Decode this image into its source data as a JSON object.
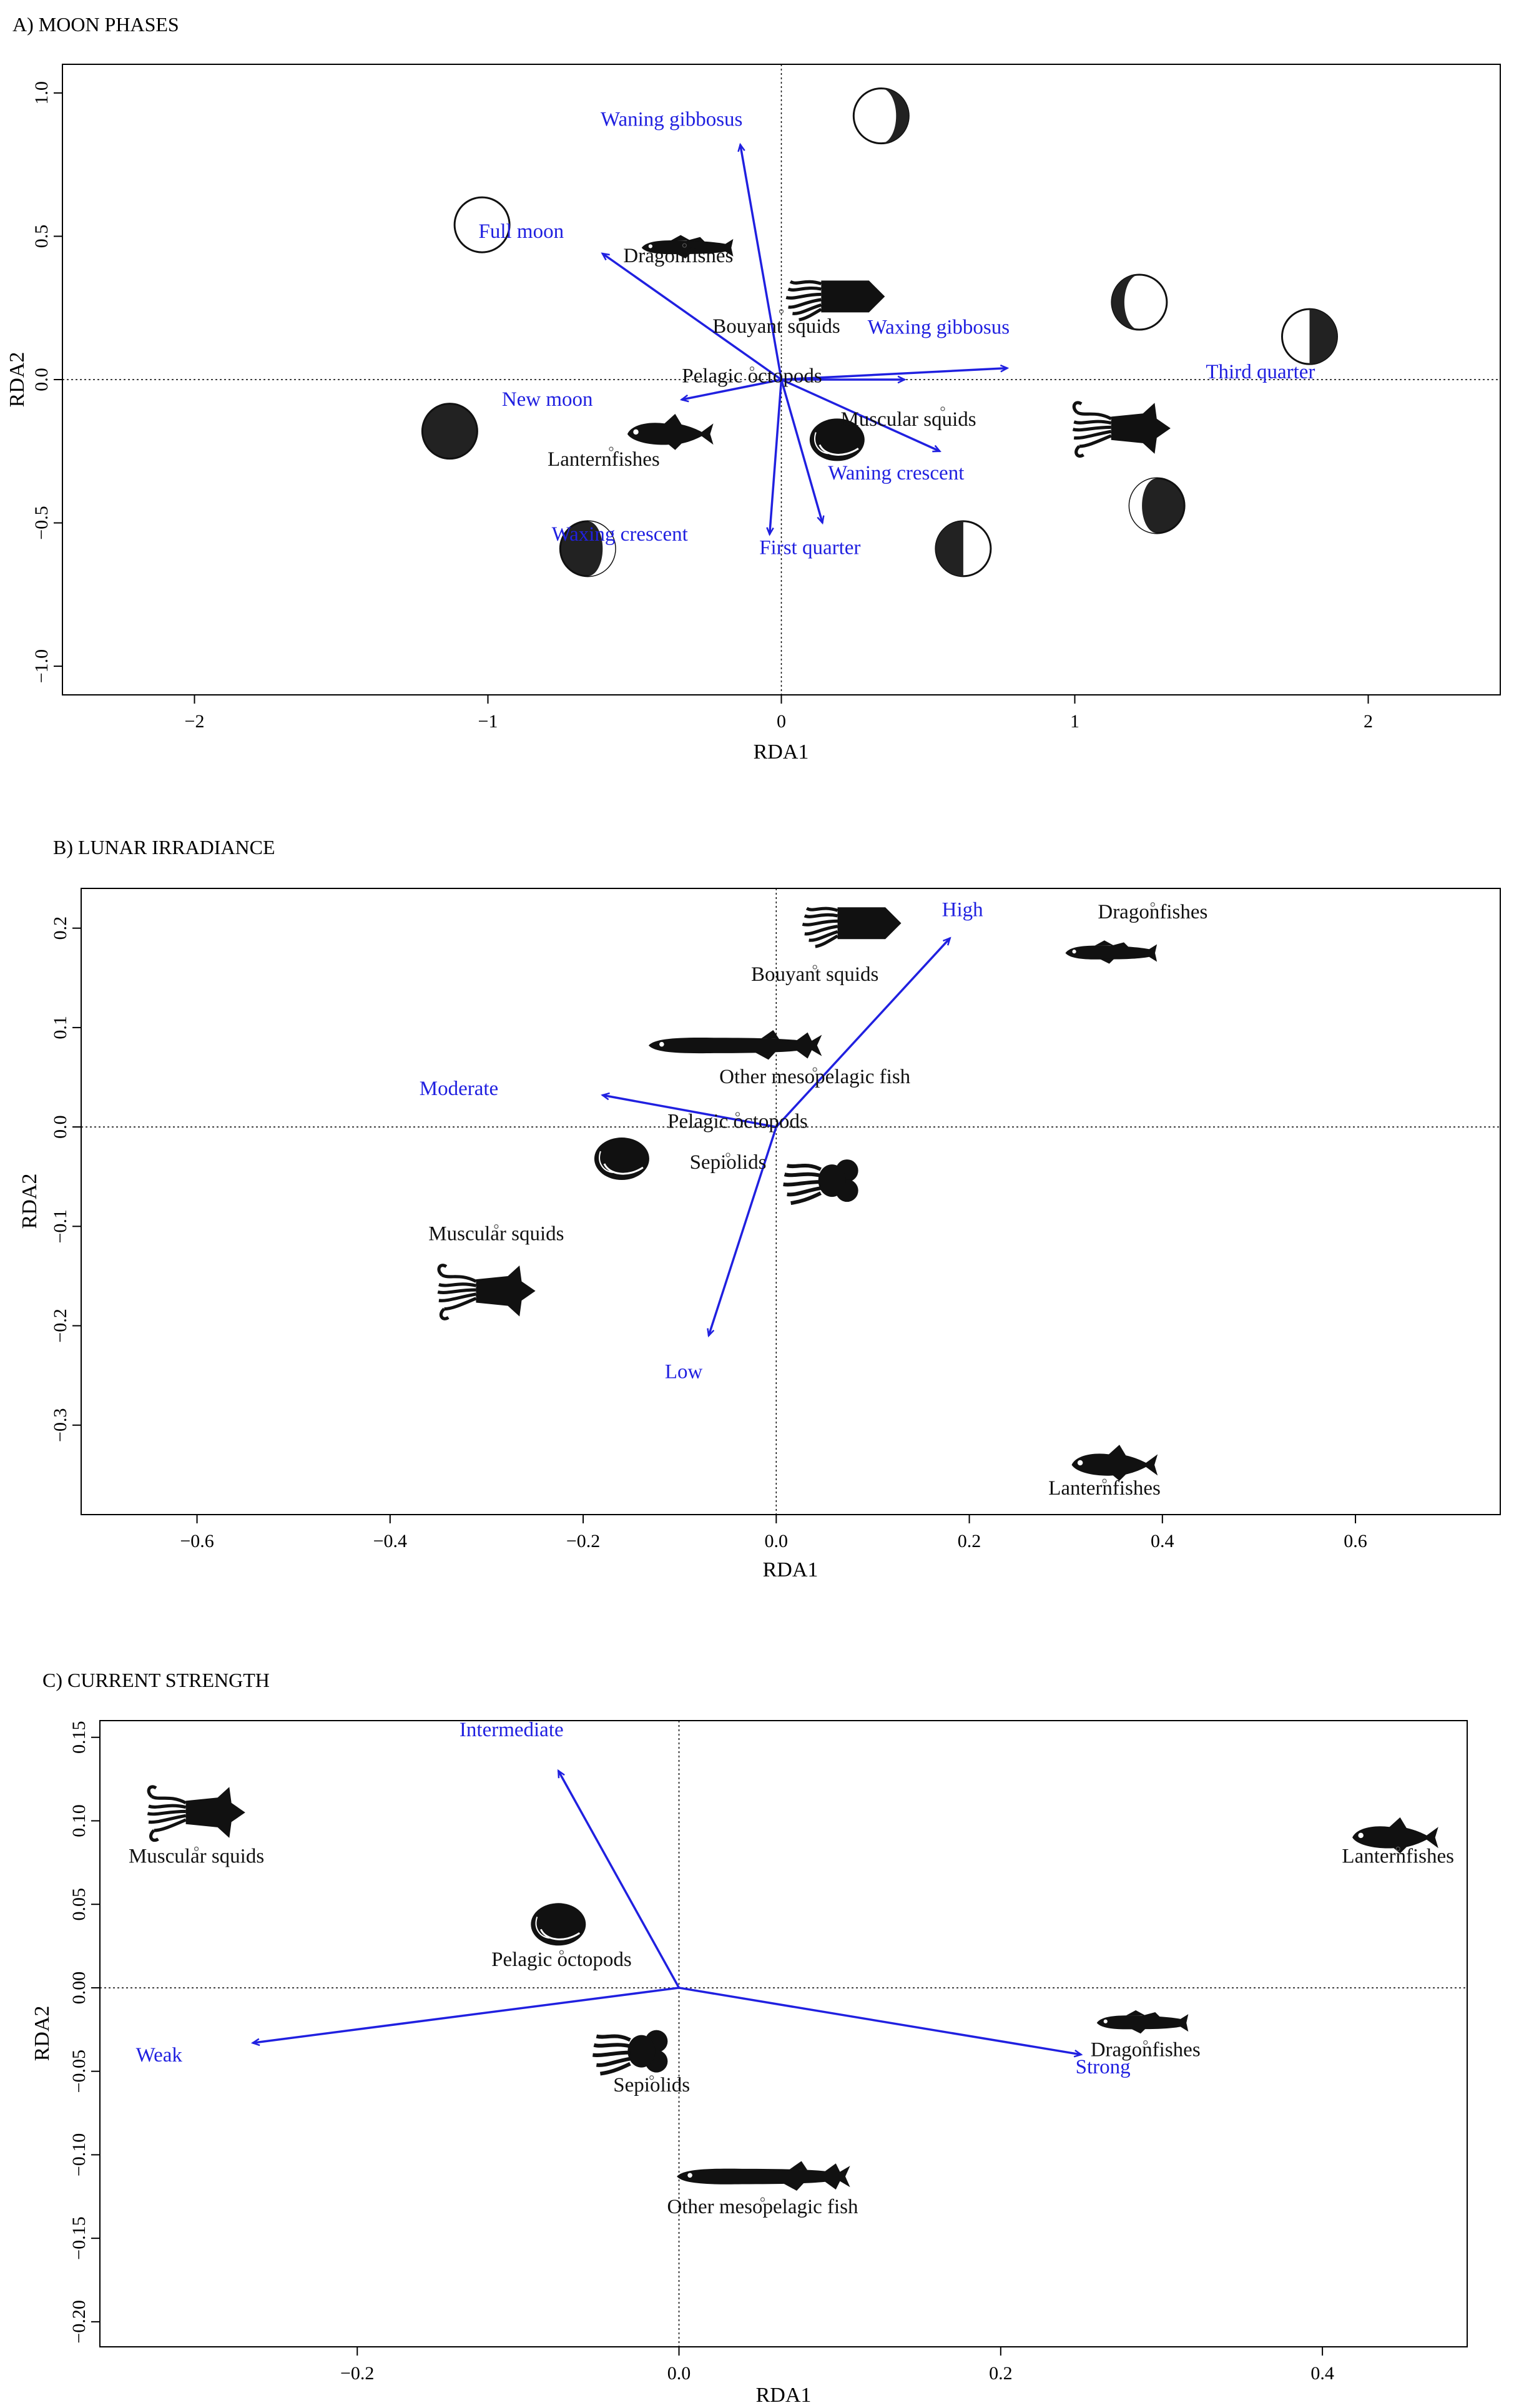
{
  "chart_data": [
    {
      "type": "scatter",
      "title": "A) MOON PHASES",
      "xlabel": "RDA1",
      "ylabel": "RDA2",
      "xlim": [
        -2.45,
        2.45
      ],
      "ylim": [
        -1.1,
        1.1
      ],
      "xticks": [
        -2,
        -1,
        0,
        1,
        2
      ],
      "yticks": [
        -1.0,
        -0.5,
        0.0,
        0.5,
        1.0
      ],
      "xtick_labels": [
        "−2",
        "−1",
        "0",
        "1",
        "2"
      ],
      "ytick_labels": [
        "−1.0",
        "−0.5",
        "0.0",
        "0.5",
        "1.0"
      ],
      "species": [
        {
          "name": "Dragonfishes",
          "x": -0.33,
          "y": 0.42,
          "icon": "dragonfish"
        },
        {
          "name": "Bouyant squids",
          "x": 0.0,
          "y": 0.19,
          "icon": "bouyant-squid"
        },
        {
          "name": "Pelagic octopods",
          "x": -0.1,
          "y": -0.01,
          "icon": "octopod"
        },
        {
          "name": "Muscular squids",
          "x": 0.55,
          "y": -0.15,
          "icon": "muscular-squid"
        },
        {
          "name": "Lanternfishes",
          "x": -0.58,
          "y": -0.29,
          "icon": "lanternfish"
        }
      ],
      "species_icons": [
        {
          "icon": "dragonfish",
          "x": -0.31,
          "y": 0.46
        },
        {
          "icon": "bouyant-squid",
          "x": 0.19,
          "y": 0.29
        },
        {
          "icon": "octopod",
          "x": 0.19,
          "y": -0.21
        },
        {
          "icon": "muscular-squid",
          "x": 1.16,
          "y": -0.17
        },
        {
          "icon": "lanternfish",
          "x": -0.38,
          "y": -0.19
        }
      ],
      "vectors": [
        {
          "name": "Waning gibbosus",
          "x": -0.14,
          "y": 0.82
        },
        {
          "name": "Full moon",
          "x": -0.61,
          "y": 0.44
        },
        {
          "name": "Waxing gibbosus",
          "x": 0.77,
          "y": 0.04
        },
        {
          "name": "Third quarter",
          "x": 0.42,
          "y": 0.0
        },
        {
          "name": "New moon",
          "x": -0.34,
          "y": -0.07
        },
        {
          "name": "Waning crescent",
          "x": 0.54,
          "y": -0.25
        },
        {
          "name": "First quarter",
          "x": 0.14,
          "y": -0.5
        },
        {
          "name": "Waxing crescent",
          "x": -0.04,
          "y": -0.54
        }
      ],
      "moon_icons": [
        {
          "phase": "waning-gibbous",
          "x": 0.34,
          "y": 0.92
        },
        {
          "phase": "full",
          "x": -1.02,
          "y": 0.54
        },
        {
          "phase": "waxing-gibbous",
          "x": 1.22,
          "y": 0.27
        },
        {
          "phase": "third-quarter",
          "x": 1.8,
          "y": 0.15
        },
        {
          "phase": "new",
          "x": -1.13,
          "y": -0.18
        },
        {
          "phase": "waning-crescent",
          "x": 1.28,
          "y": -0.44
        },
        {
          "phase": "first-quarter",
          "x": 0.62,
          "y": -0.59
        },
        {
          "phase": "waxing-crescent",
          "x": -0.66,
          "y": -0.59
        }
      ]
    },
    {
      "type": "scatter",
      "title": "B) LUNAR IRRADIANCE",
      "xlabel": "RDA1",
      "ylabel": "RDA2",
      "xlim": [
        -0.72,
        0.75
      ],
      "ylim": [
        -0.39,
        0.24
      ],
      "xticks": [
        -0.6,
        -0.4,
        -0.2,
        0.0,
        0.2,
        0.4,
        0.6
      ],
      "yticks": [
        -0.3,
        -0.2,
        -0.1,
        0.0,
        0.1,
        0.2
      ],
      "xtick_labels": [
        "−0.6",
        "−0.4",
        "−0.2",
        "0.0",
        "0.2",
        "0.4",
        "0.6"
      ],
      "ytick_labels": [
        "−0.3",
        "−0.2",
        "−0.1",
        "0.0",
        "0.1",
        "0.2"
      ],
      "species": [
        {
          "name": "Dragonfishes",
          "x": 0.39,
          "y": 0.21
        },
        {
          "name": "Bouyant squids",
          "x": 0.04,
          "y": 0.147
        },
        {
          "name": "Other mesopelagic fish",
          "x": 0.04,
          "y": 0.044
        },
        {
          "name": "Pelagic octopods",
          "x": -0.04,
          "y": -0.001
        },
        {
          "name": "Sepiolids",
          "x": -0.05,
          "y": -0.042
        },
        {
          "name": "Muscular squids",
          "x": -0.29,
          "y": -0.114
        },
        {
          "name": "Lanternfishes",
          "x": 0.34,
          "y": -0.37
        }
      ],
      "species_icons": [
        {
          "icon": "bouyant-squid",
          "x": 0.08,
          "y": 0.205
        },
        {
          "icon": "dragonfish",
          "x": 0.35,
          "y": 0.175
        },
        {
          "icon": "other-mesopelagic",
          "x": -0.04,
          "y": 0.082
        },
        {
          "icon": "octopod",
          "x": -0.16,
          "y": -0.032
        },
        {
          "icon": "sepiolid",
          "x": 0.05,
          "y": -0.054
        },
        {
          "icon": "muscular-squid",
          "x": -0.3,
          "y": -0.165
        },
        {
          "icon": "lanternfish",
          "x": 0.35,
          "y": -0.34
        }
      ],
      "vectors": [
        {
          "name": "High",
          "x": 0.18,
          "y": 0.19
        },
        {
          "name": "Moderate",
          "x": -0.18,
          "y": 0.032
        },
        {
          "name": "Low",
          "x": -0.07,
          "y": -0.21
        }
      ]
    },
    {
      "type": "scatter",
      "title": "C) CURRENT STRENGTH",
      "xlabel": "RDA1",
      "ylabel": "RDA2",
      "xlim": [
        -0.36,
        0.49
      ],
      "ylim": [
        -0.215,
        0.16
      ],
      "xticks": [
        -0.2,
        0.0,
        0.2,
        0.4
      ],
      "yticks": [
        -0.2,
        -0.15,
        -0.1,
        -0.05,
        0.0,
        0.05,
        0.1,
        0.15
      ],
      "xtick_labels": [
        "−0.2",
        "0.0",
        "0.2",
        "0.4"
      ],
      "ytick_labels": [
        "−0.20",
        "−0.15",
        "−0.10",
        "−0.05",
        "0.00",
        "0.05",
        "0.10",
        "0.15"
      ],
      "species": [
        {
          "name": "Muscular squids",
          "x": -0.3,
          "y": 0.075
        },
        {
          "name": "Pelagic octopods",
          "x": -0.073,
          "y": 0.013
        },
        {
          "name": "Sepiolids",
          "x": -0.017,
          "y": -0.062
        },
        {
          "name": "Other mesopelagic fish",
          "x": 0.052,
          "y": -0.135
        },
        {
          "name": "Dragonfishes",
          "x": 0.29,
          "y": -0.041
        },
        {
          "name": "Lanternfishes",
          "x": 0.447,
          "y": 0.075
        }
      ],
      "species_icons": [
        {
          "icon": "muscular-squid",
          "x": -0.3,
          "y": 0.105
        },
        {
          "icon": "octopod",
          "x": -0.075,
          "y": 0.038
        },
        {
          "icon": "sepiolid",
          "x": -0.028,
          "y": -0.038
        },
        {
          "icon": "other-mesopelagic",
          "x": 0.054,
          "y": -0.113
        },
        {
          "icon": "dragonfish",
          "x": 0.29,
          "y": -0.021
        },
        {
          "icon": "lanternfish",
          "x": 0.445,
          "y": 0.09
        }
      ],
      "vectors": [
        {
          "name": "Intermediate",
          "x": -0.075,
          "y": 0.13
        },
        {
          "name": "Weak",
          "x": -0.265,
          "y": -0.033
        },
        {
          "name": "Strong",
          "x": 0.25,
          "y": -0.04
        }
      ]
    }
  ]
}
